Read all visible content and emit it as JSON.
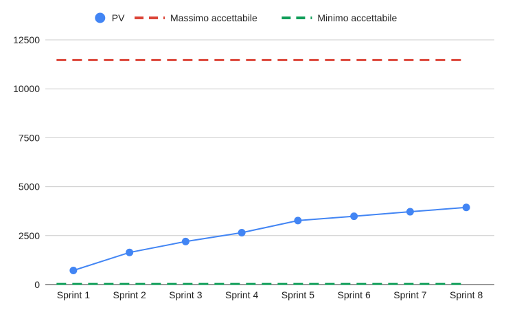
{
  "chart_data": {
    "type": "line",
    "title": "",
    "xlabel": "",
    "ylabel": "",
    "categories": [
      "Sprint 1",
      "Sprint 2",
      "Sprint 3",
      "Sprint 4",
      "Sprint 5",
      "Sprint 6",
      "Sprint 7",
      "Sprint 8"
    ],
    "ylim": [
      0,
      12500
    ],
    "y_ticks": [
      0,
      2500,
      5000,
      7500,
      10000,
      12500
    ],
    "y_tick_labels": [
      "0",
      "2500",
      "5000",
      "7500",
      "10000",
      "12500"
    ],
    "grid": true,
    "legend_position": "top",
    "series": [
      {
        "name": "PV",
        "color": "#4285f4",
        "style": "solid",
        "markers": true,
        "values": [
          720,
          1640,
          2200,
          2650,
          3270,
          3490,
          3720,
          3940
        ]
      },
      {
        "name": "Massimo accettabile",
        "color": "#db4437",
        "style": "dashed",
        "markers": false,
        "values": [
          11470,
          11470,
          11470,
          11470,
          11470,
          11470,
          11470,
          11470
        ]
      },
      {
        "name": "Minimo accettabile",
        "color": "#0f9d58",
        "style": "dashed",
        "markers": false,
        "values": [
          30,
          30,
          30,
          30,
          30,
          30,
          30,
          30
        ]
      }
    ]
  }
}
